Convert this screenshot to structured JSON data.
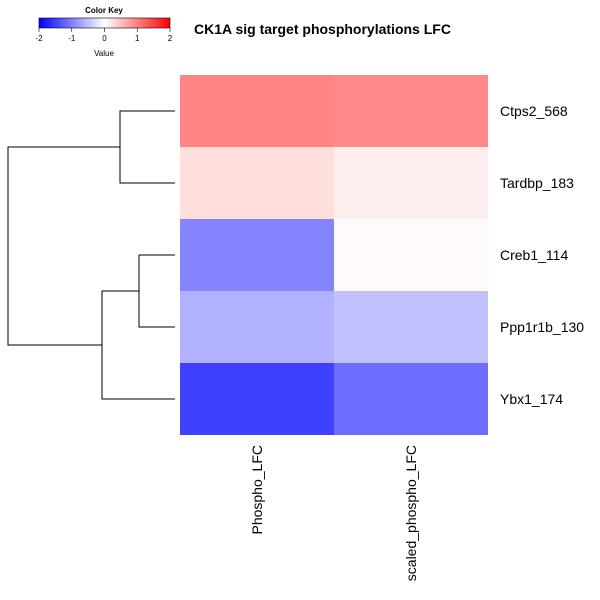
{
  "chart_data": {
    "type": "heatmap",
    "title": "CK1A sig target phosphorylations LFC",
    "columns": [
      "Phospho_LFC",
      "scaled_phospho_LFC"
    ],
    "rows": [
      "Ctps2_568",
      "Tardbp_183",
      "Creb1_114",
      "Ppp1r1b_130",
      "Ybx1_174"
    ],
    "values": [
      [
        1.1,
        1.05
      ],
      [
        0.3,
        0.15
      ],
      [
        -1.1,
        0.05
      ],
      [
        -0.7,
        -0.55
      ],
      [
        -1.7,
        -1.3
      ]
    ],
    "color_scale": {
      "min": -2,
      "mid": 0,
      "max": 2,
      "low": "#0000ff",
      "mid_color": "#ffffff",
      "high": "#ff0000"
    },
    "dendrogram": "rows",
    "color_key": {
      "title": "Color Key",
      "axis_label": "Value",
      "ticks": [
        "-2",
        "-1",
        "0",
        "1",
        "2"
      ]
    }
  }
}
